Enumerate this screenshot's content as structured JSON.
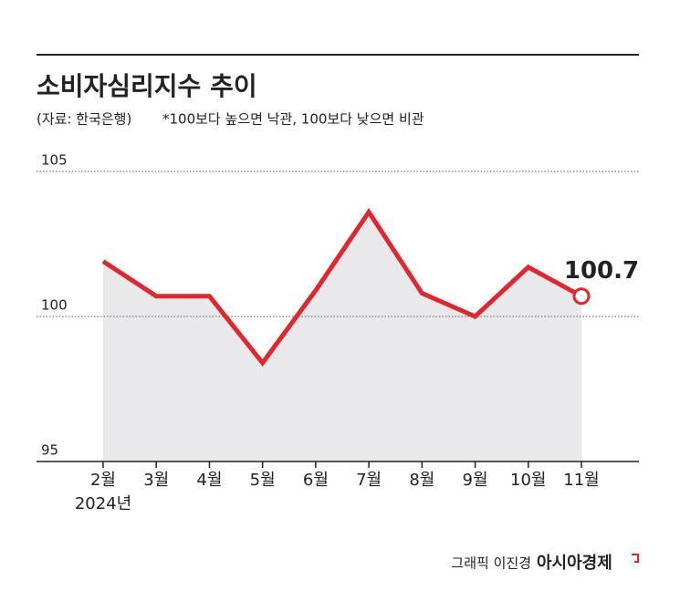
{
  "chart_data": {
    "type": "line",
    "title": "소비자심리지수 추이",
    "source": "(자료: 한국은행)",
    "note": "*100보다 높으면 낙관, 100보다 낮으면 비관",
    "x_sublabel": "2024년",
    "credit": "그래픽 이진경",
    "publisher": "아시아경제",
    "categories": [
      "2월",
      "3월",
      "4월",
      "5월",
      "6월",
      "7월",
      "8월",
      "9월",
      "10월",
      "11월"
    ],
    "values": [
      101.9,
      100.7,
      100.7,
      98.4,
      100.9,
      103.6,
      100.8,
      100.0,
      101.7,
      100.7
    ],
    "color": "#e3262b",
    "area_color": "#e9e9ec",
    "ylim": [
      95,
      105
    ],
    "yticks": [
      95,
      100,
      105
    ],
    "grid": true
  }
}
